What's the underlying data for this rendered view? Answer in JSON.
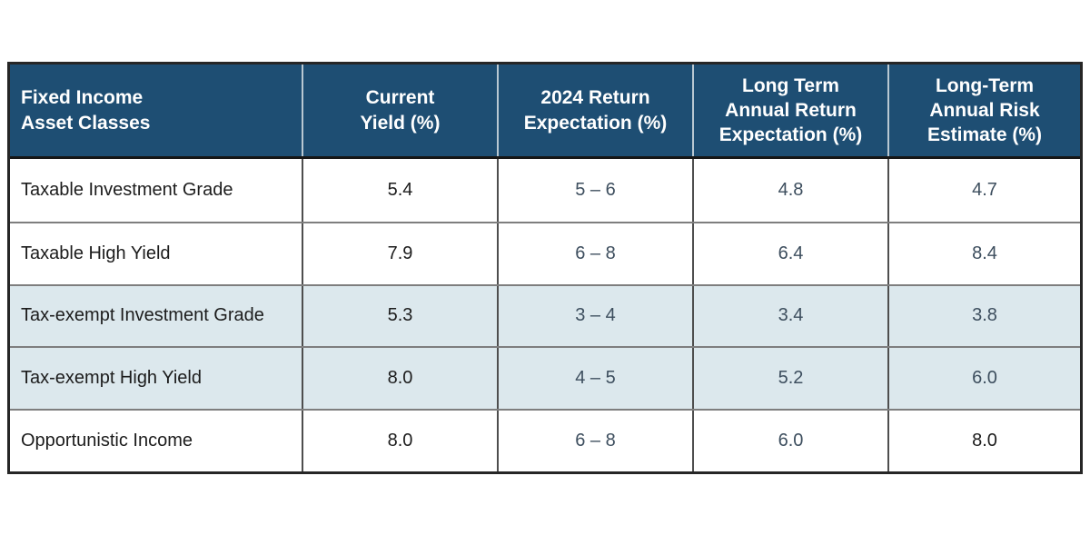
{
  "colors": {
    "header_bg": "#1E4E73",
    "header_text": "#FFFFFF",
    "shaded_row_bg": "#DCE8ED",
    "outer_border": "#262626",
    "row_divider": "#7E7E7E",
    "column_divider": "#4E4E4E",
    "value_text_slate": "#3D4E5E",
    "value_text_black": "#1C1C1C"
  },
  "chart_data": {
    "type": "table",
    "columns": [
      {
        "label": "Fixed Income\nAsset Classes"
      },
      {
        "label": "Current\nYield (%)"
      },
      {
        "label": "2024 Return\nExpectation (%)"
      },
      {
        "label": "Long Term\nAnnual Return\nExpectation (%)"
      },
      {
        "label": "Long-Term\nAnnual Risk\nEstimate (%)"
      }
    ],
    "rows": [
      {
        "asset_class": "Taxable Investment Grade",
        "current_yield": "5.4",
        "return_expectation_2024": "5 – 6",
        "long_term_annual_return_expectation": "4.8",
        "long_term_annual_risk_estimate": "4.7",
        "shaded": false
      },
      {
        "asset_class": "Taxable High Yield",
        "current_yield": "7.9",
        "return_expectation_2024": "6 – 8",
        "long_term_annual_return_expectation": "6.4",
        "long_term_annual_risk_estimate": "8.4",
        "shaded": false
      },
      {
        "asset_class": "Tax-exempt Investment Grade",
        "current_yield": "5.3",
        "return_expectation_2024": "3 – 4",
        "long_term_annual_return_expectation": "3.4",
        "long_term_annual_risk_estimate": "3.8",
        "shaded": true
      },
      {
        "asset_class": "Tax-exempt High Yield",
        "current_yield": "8.0",
        "return_expectation_2024": "4 – 5",
        "long_term_annual_return_expectation": "5.2",
        "long_term_annual_risk_estimate": "6.0",
        "shaded": true
      },
      {
        "asset_class": "Opportunistic Income",
        "current_yield": "8.0",
        "return_expectation_2024": "6 – 8",
        "long_term_annual_return_expectation": "6.0",
        "long_term_annual_risk_estimate": "8.0",
        "shaded": false
      }
    ]
  }
}
